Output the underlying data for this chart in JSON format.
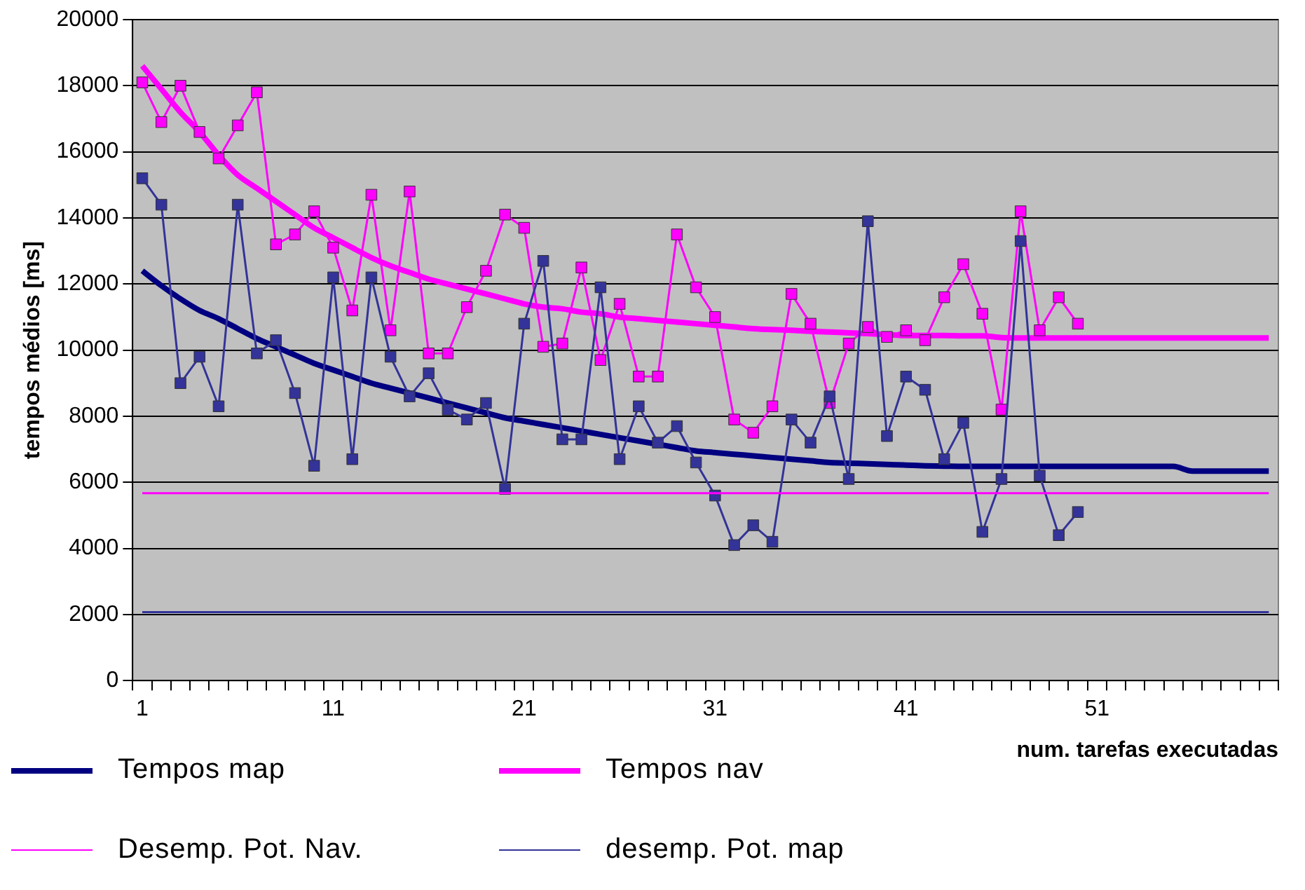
{
  "chart_data": {
    "type": "line",
    "xlabel": "num. tarefas executadas",
    "ylabel": "tempos médios [ms]",
    "categories": [
      "1",
      null,
      null,
      null,
      null,
      null,
      null,
      null,
      null,
      null,
      "11",
      null,
      null,
      null,
      null,
      null,
      null,
      null,
      null,
      null,
      "21",
      null,
      null,
      null,
      null,
      null,
      null,
      null,
      null,
      null,
      "31",
      null,
      null,
      null,
      null,
      null,
      null,
      null,
      null,
      null,
      "41",
      null,
      null,
      null,
      null,
      null,
      null,
      null,
      null,
      null,
      "51",
      null,
      null,
      null,
      null,
      null,
      null,
      null,
      null,
      null
    ],
    "ylim": [
      0,
      20000
    ],
    "yticks": [
      0,
      2000,
      4000,
      6000,
      8000,
      10000,
      12000,
      14000,
      16000,
      18000,
      20000
    ],
    "grid": "y",
    "legend": "bottom",
    "series": [
      {
        "color": "#333399",
        "marker": "square",
        "values": [
          15200,
          14400,
          9000,
          9800,
          8300,
          14400,
          9900,
          10300,
          8700,
          6500,
          12200,
          6700,
          12200,
          9800,
          8600,
          9300,
          8200,
          7900,
          8400,
          5800,
          10800,
          12700,
          7300,
          7300,
          11900,
          6700,
          8300,
          7200,
          7700,
          6600,
          5600,
          4100,
          4700,
          4200,
          7900,
          7200,
          8600,
          6100,
          13900,
          7400,
          9200,
          8800,
          6700,
          7800,
          4500,
          6100,
          13300,
          6200,
          4400,
          5100,
          null,
          null,
          null,
          null,
          null,
          null,
          null,
          null,
          null,
          null
        ]
      },
      {
        "color": "#ff00ff",
        "marker": "square",
        "values": [
          18100,
          16900,
          18000,
          16600,
          15800,
          16800,
          17800,
          13200,
          13500,
          14200,
          13100,
          11200,
          14700,
          10600,
          14800,
          9900,
          9900,
          11300,
          12400,
          14100,
          13700,
          10100,
          10200,
          12500,
          9700,
          11400,
          9200,
          9200,
          13500,
          11900,
          11000,
          7900,
          7500,
          8300,
          11700,
          10800,
          8400,
          10200,
          10700,
          10400,
          10600,
          10300,
          11600,
          12600,
          11100,
          8200,
          14200,
          10600,
          11600,
          10800,
          null,
          null,
          null,
          null,
          null,
          null,
          null,
          null,
          null,
          null
        ]
      },
      {
        "name": "Tempos map",
        "color": "#000080",
        "marker": "none",
        "values": [
          12400,
          11950,
          11550,
          11200,
          10950,
          10650,
          10350,
          10100,
          9850,
          9600,
          9400,
          9200,
          9000,
          8850,
          8700,
          8550,
          8400,
          8250,
          8100,
          7950,
          7850,
          7750,
          7650,
          7550,
          7450,
          7350,
          7250,
          7150,
          7050,
          6950,
          6900,
          6850,
          6800,
          6750,
          6700,
          6650,
          6600,
          6580,
          6560,
          6540,
          6520,
          6500,
          6490,
          6480,
          6480,
          6480,
          6480,
          6480,
          6480,
          6480,
          6480,
          6480,
          6480,
          6480,
          6480,
          6340,
          6340,
          6340,
          6340,
          6340
        ]
      },
      {
        "name": "Tempos nav",
        "color": "#ff00ff",
        "marker": "none",
        "values": [
          18600,
          17900,
          17200,
          16600,
          15900,
          15300,
          14900,
          14500,
          14100,
          13700,
          13400,
          13100,
          12800,
          12550,
          12350,
          12150,
          12000,
          11850,
          11700,
          11550,
          11400,
          11300,
          11250,
          11150,
          11100,
          11000,
          10950,
          10900,
          10850,
          10800,
          10750,
          10700,
          10650,
          10620,
          10600,
          10570,
          10550,
          10520,
          10500,
          10470,
          10440,
          10440,
          10440,
          10430,
          10430,
          10380,
          10370,
          10370,
          10370,
          10370,
          10370,
          10370,
          10370,
          10370,
          10370,
          10370,
          10370,
          10370,
          10370,
          10370
        ]
      }
    ],
    "ref_lines": [
      {
        "axis": "y",
        "value": 5670,
        "label": "Desemp. Pot. Nav.",
        "color": "#ff00ff"
      },
      {
        "axis": "y",
        "value": 2070,
        "label": "desemp. Pot. map",
        "color": "#333399"
      }
    ]
  }
}
